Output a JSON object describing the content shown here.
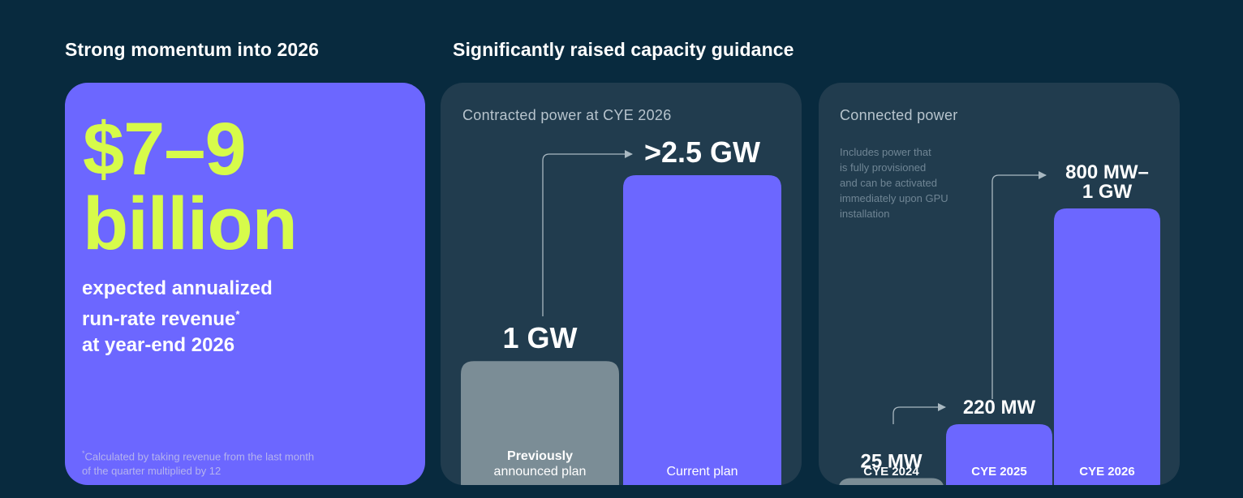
{
  "left_section": {
    "title": "Strong momentum into 2026",
    "big_value_line1": "$7–9",
    "big_value_line2": "billion",
    "description_lines": [
      "expected annualized",
      "run-rate revenue",
      "at year-end 2026"
    ],
    "description_superscript": "*",
    "footnote_marker": "*",
    "footnote_lines": [
      "Calculated by taking revenue from the last month",
      "of the quarter multiplied by 12"
    ]
  },
  "right_section": {
    "title": "Significantly raised capacity guidance"
  },
  "colors": {
    "background": "#082a3e",
    "card": "#213c4e",
    "accent_purple": "#6c67ff",
    "accent_lime": "#d7fb4a",
    "bar_gray": "#7b8d96"
  },
  "chart_data": [
    {
      "type": "bar",
      "title": "Contracted power at CYE 2026",
      "categories": [
        "Previously announced plan",
        "Current plan"
      ],
      "category_label_lines": [
        [
          "Previously",
          "announced plan"
        ],
        [
          "Current plan"
        ]
      ],
      "values": [
        1,
        2.5
      ],
      "unit": "GW",
      "data_labels": [
        "1 GW",
        ">2.5 GW"
      ],
      "bar_colors": [
        "#7b8d96",
        "#6c67ff"
      ],
      "annotations": [
        "arrow from Previously announced plan to Current plan"
      ],
      "ylim": [
        0,
        2.5
      ],
      "grid": false
    },
    {
      "type": "bar",
      "title": "Connected power",
      "note_lines": [
        "Includes power that",
        "is fully provisioned",
        "and can be activated",
        "immediately upon GPU",
        "installation"
      ],
      "categories": [
        "CYE 2024",
        "CYE 2025",
        "CYE 2026"
      ],
      "values": [
        25,
        220,
        1000
      ],
      "unit": "MW",
      "data_labels": [
        "25 MW",
        "220 MW",
        "800 MW–\n1 GW"
      ],
      "bar_colors": [
        "#7b8d96",
        "#6c67ff",
        "#6c67ff"
      ],
      "annotations": [
        "arrow from CYE 2024 to CYE 2025",
        "arrow from CYE 2025 to CYE 2026"
      ],
      "ylim": [
        0,
        1000
      ],
      "grid": false
    }
  ]
}
